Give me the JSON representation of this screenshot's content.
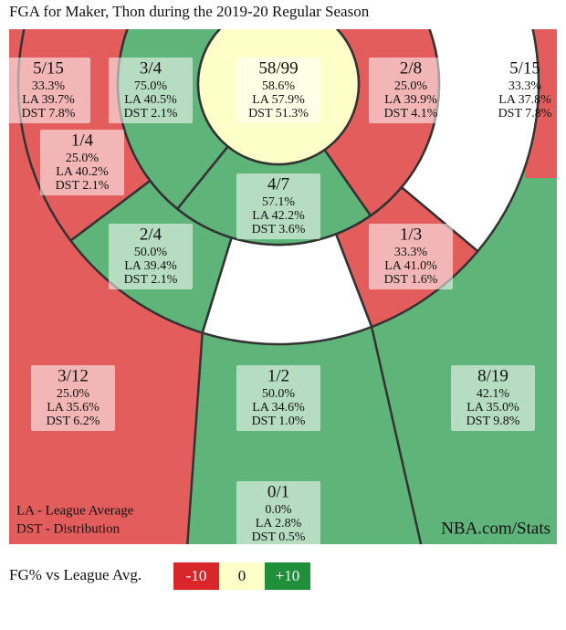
{
  "title": "FGA for Maker, Thon during the 2019-20 Regular Season",
  "zones": [
    {
      "made_attempts": "5/15",
      "fg_pct": "33.3%",
      "league_avg": "LA 39.7%",
      "distribution": "DST 7.8%"
    },
    {
      "made_attempts": "3/4",
      "fg_pct": "75.0%",
      "league_avg": "LA 40.5%",
      "distribution": "DST 2.1%"
    },
    {
      "made_attempts": "58/99",
      "fg_pct": "58.6%",
      "league_avg": "LA 57.9%",
      "distribution": "DST 51.3%"
    },
    {
      "made_attempts": "2/8",
      "fg_pct": "25.0%",
      "league_avg": "LA 39.9%",
      "distribution": "DST 4.1%"
    },
    {
      "made_attempts": "5/15",
      "fg_pct": "33.3%",
      "league_avg": "LA 37.8%",
      "distribution": "DST 7.8%"
    },
    {
      "made_attempts": "1/4",
      "fg_pct": "25.0%",
      "league_avg": "LA 40.2%",
      "distribution": "DST 2.1%"
    },
    {
      "made_attempts": "4/7",
      "fg_pct": "57.1%",
      "league_avg": "LA 42.2%",
      "distribution": "DST 3.6%"
    },
    {
      "made_attempts": "2/4",
      "fg_pct": "50.0%",
      "league_avg": "LA 39.4%",
      "distribution": "DST 2.1%"
    },
    {
      "made_attempts": "1/3",
      "fg_pct": "33.3%",
      "league_avg": "LA 41.0%",
      "distribution": "DST 1.6%"
    },
    {
      "made_attempts": "3/12",
      "fg_pct": "25.0%",
      "league_avg": "LA 35.6%",
      "distribution": "DST 6.2%"
    },
    {
      "made_attempts": "1/2",
      "fg_pct": "50.0%",
      "league_avg": "LA 34.6%",
      "distribution": "DST 1.0%"
    },
    {
      "made_attempts": "8/19",
      "fg_pct": "42.1%",
      "league_avg": "LA 35.0%",
      "distribution": "DST 9.8%"
    },
    {
      "made_attempts": "0/1",
      "fg_pct": "0.0%",
      "league_avg": "LA 2.8%",
      "distribution": "DST 0.5%"
    }
  ],
  "notes": [
    "LA - League Average",
    "DST - Distribution"
  ],
  "source": "NBA.com/Stats",
  "legend": {
    "label": "FG% vs League Avg.",
    "items": [
      "-10",
      "0",
      "+10"
    ]
  }
}
